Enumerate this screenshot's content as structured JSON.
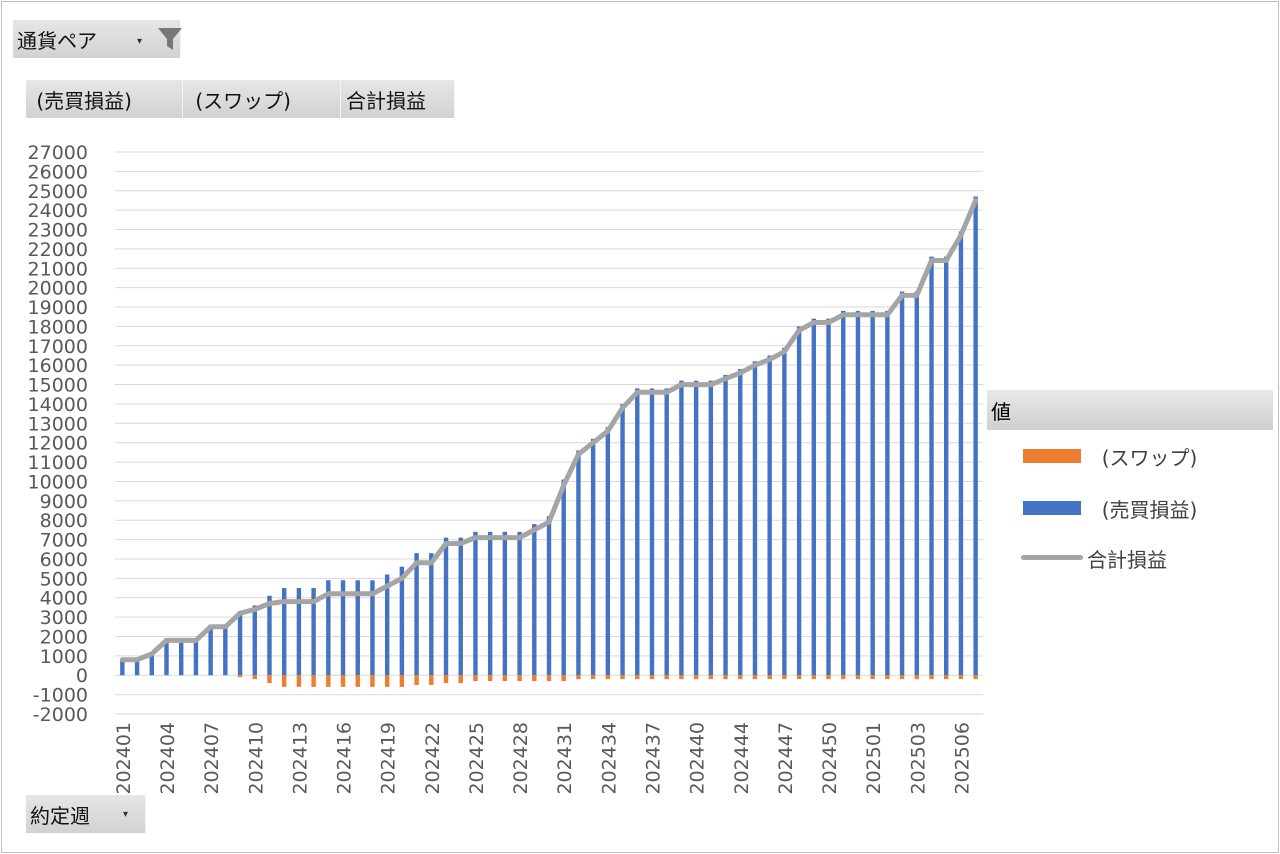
{
  "filter_field": {
    "label": "通貨ペア"
  },
  "row_field": {
    "label": "約定週"
  },
  "value_fields": [
    " (売買損益)",
    " (スワップ)",
    "合計損益"
  ],
  "legend": {
    "title": "値",
    "items": [
      {
        "label": "  (スワップ)",
        "color": "#ed7d31",
        "kind": "bar"
      },
      {
        "label": "  (売買損益)",
        "color": "#4472c4",
        "kind": "bar"
      },
      {
        "label": "合計損益",
        "color": "#a5a5a5",
        "kind": "line"
      }
    ]
  },
  "chart_data": {
    "type": "bar",
    "combo": "stacked-bar + line",
    "ylim": [
      -2000,
      27000
    ],
    "ytick_step": 1000,
    "grid": true,
    "legend_position": "right",
    "x_tick_labels": [
      "202401",
      "202404",
      "202407",
      "202410",
      "202413",
      "202416",
      "202419",
      "202422",
      "202425",
      "202428",
      "202431",
      "202434",
      "202437",
      "202440",
      "202444",
      "202447",
      "202450",
      "202501",
      "202503",
      "202506"
    ],
    "x_tick_every": 3,
    "series": [
      {
        "name": "  (売買損益)",
        "color": "#4472c4",
        "kind": "bar",
        "values": [
          800,
          800,
          1100,
          1900,
          1900,
          1900,
          2600,
          2600,
          3300,
          3600,
          4100,
          4500,
          4500,
          4500,
          4900,
          4900,
          4900,
          4900,
          5200,
          5600,
          6300,
          6300,
          7100,
          7100,
          7400,
          7400,
          7400,
          7400,
          7800,
          8200,
          10100,
          11600,
          12200,
          12800,
          14000,
          14800,
          14800,
          14800,
          15200,
          15200,
          15200,
          15500,
          15800,
          16200,
          16500,
          16900,
          18000,
          18400,
          18400,
          18800,
          18800,
          18800,
          18800,
          19800,
          19800,
          21600,
          21600,
          22900,
          24700
        ]
      },
      {
        "name": "  (スワップ)",
        "color": "#ed7d31",
        "kind": "bar",
        "values": [
          0,
          0,
          0,
          0,
          0,
          0,
          0,
          0,
          -100,
          -200,
          -400,
          -600,
          -600,
          -600,
          -600,
          -600,
          -600,
          -600,
          -600,
          -600,
          -500,
          -500,
          -400,
          -400,
          -300,
          -300,
          -300,
          -300,
          -300,
          -300,
          -300,
          -200,
          -200,
          -200,
          -200,
          -200,
          -200,
          -200,
          -200,
          -200,
          -200,
          -200,
          -200,
          -200,
          -200,
          -200,
          -200,
          -200,
          -200,
          -200,
          -200,
          -200,
          -200,
          -200,
          -200,
          -200,
          -200,
          -200,
          -200
        ]
      },
      {
        "name": "合計損益",
        "color": "#a5a5a5",
        "kind": "line",
        "values": [
          800,
          800,
          1100,
          1800,
          1800,
          1800,
          2500,
          2500,
          3200,
          3400,
          3700,
          3800,
          3800,
          3800,
          4200,
          4200,
          4200,
          4200,
          4600,
          5000,
          5800,
          5800,
          6800,
          6800,
          7100,
          7100,
          7100,
          7100,
          7500,
          7900,
          9800,
          11400,
          12000,
          12600,
          13800,
          14600,
          14600,
          14600,
          15000,
          15000,
          15000,
          15300,
          15600,
          16000,
          16300,
          16700,
          17800,
          18200,
          18200,
          18600,
          18600,
          18600,
          18600,
          19600,
          19600,
          21400,
          21400,
          22700,
          24500
        ]
      }
    ]
  }
}
